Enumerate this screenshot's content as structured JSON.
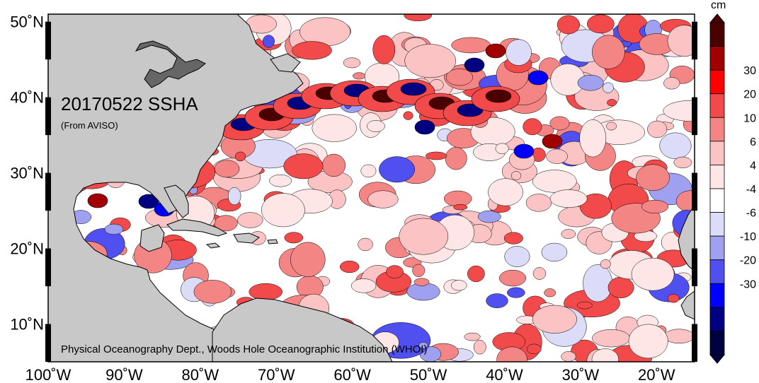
{
  "map": {
    "title": "20170522 SSHA",
    "source": "(From AVISO)",
    "credit": "Physical Oceanography Dept., Woods Hole Oceanographic Institution (WHOI)",
    "lon_range": [
      -100,
      -15
    ],
    "lat_range": [
      5,
      51
    ],
    "lon_ticks": [
      {
        "value": -100,
        "label": "100˚W"
      },
      {
        "value": -90,
        "label": "90˚W"
      },
      {
        "value": -80,
        "label": "80˚W"
      },
      {
        "value": -70,
        "label": "70˚W"
      },
      {
        "value": -60,
        "label": "60˚W"
      },
      {
        "value": -50,
        "label": "50˚W"
      },
      {
        "value": -40,
        "label": "40˚W"
      },
      {
        "value": -30,
        "label": "30˚W"
      },
      {
        "value": -20,
        "label": "20˚W"
      }
    ],
    "lat_ticks": [
      {
        "value": 50,
        "label": "50˚N"
      },
      {
        "value": 40,
        "label": "40˚N"
      },
      {
        "value": 30,
        "label": "30˚N"
      },
      {
        "value": 20,
        "label": "20˚N"
      },
      {
        "value": 10,
        "label": "10˚N"
      }
    ],
    "colors": {
      "land": "#c8c8c8",
      "lake": "#666666",
      "ocean_neutral": "#ffffff"
    }
  },
  "colorbar": {
    "unit": "cm",
    "bins": [
      {
        "color": "#4a0000"
      },
      {
        "color": "#a00000"
      },
      {
        "color": "#ff0000"
      },
      {
        "color": "#f24a4a"
      },
      {
        "color": "#f48585"
      },
      {
        "color": "#fbc3c3"
      },
      {
        "color": "#ffe6e6"
      },
      {
        "color": "#ffffff"
      },
      {
        "color": "#dcdcf8"
      },
      {
        "color": "#a0a0f0"
      },
      {
        "color": "#5050f0"
      },
      {
        "color": "#0000ff"
      },
      {
        "color": "#000080"
      },
      {
        "color": "#000040"
      }
    ],
    "labels": [
      "30",
      "20",
      "10",
      "6",
      "4",
      "-4",
      "-6",
      "-10",
      "-20",
      "-30"
    ]
  }
}
